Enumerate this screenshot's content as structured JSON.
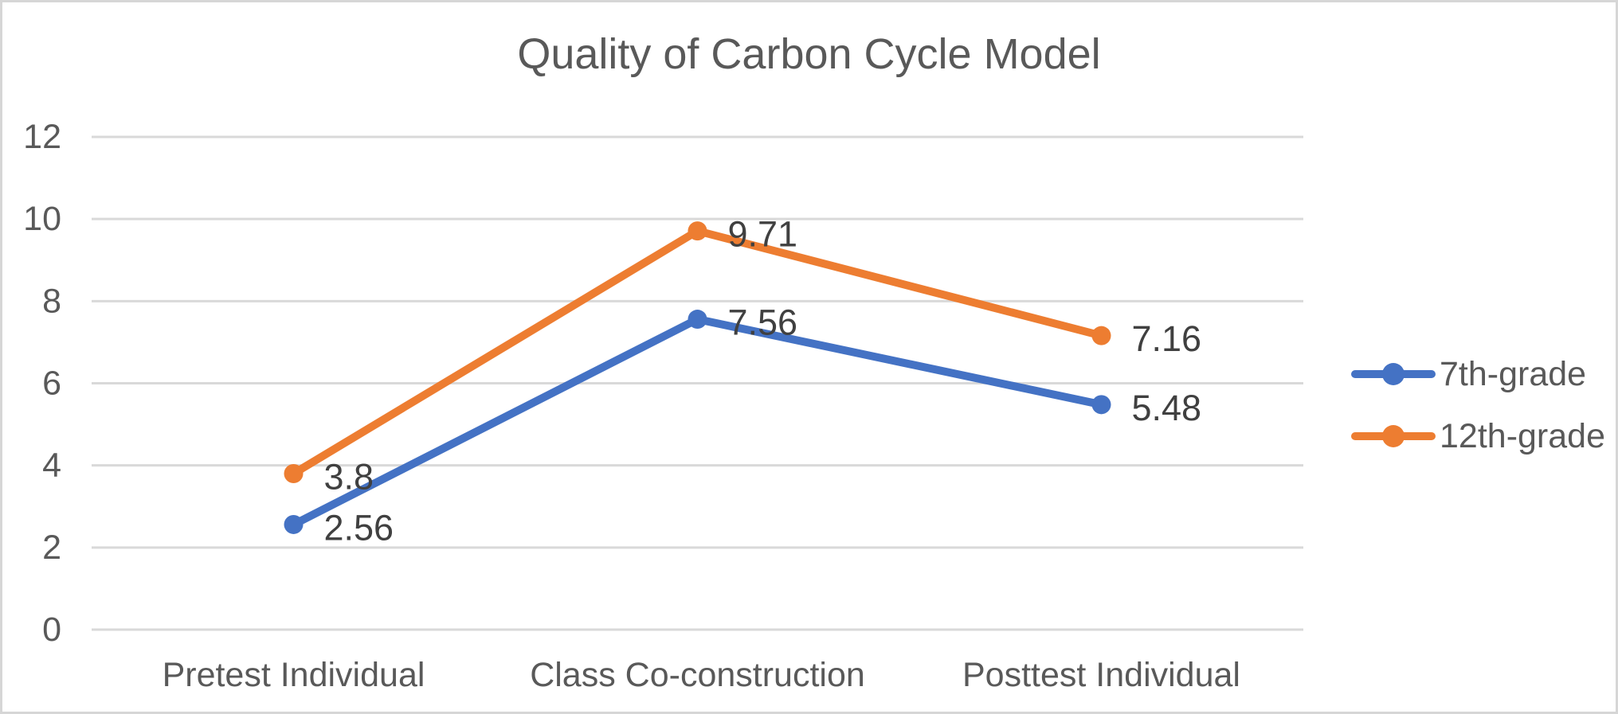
{
  "chart_data": {
    "type": "line",
    "title": "Quality of Carbon Cycle Model",
    "categories": [
      "Pretest Individual",
      "Class Co-construction",
      "Posttest Individual"
    ],
    "series": [
      {
        "name": "7th-grade",
        "color": "#4472C4",
        "values": [
          2.56,
          7.56,
          5.48
        ],
        "data_labels": [
          "2.56",
          "7.56",
          "5.48"
        ]
      },
      {
        "name": "12th-grade",
        "color": "#ED7D31",
        "values": [
          3.8,
          9.71,
          7.16
        ],
        "data_labels": [
          "3.8",
          "9.71",
          "7.16"
        ]
      }
    ],
    "y_axis": {
      "min": 0,
      "max": 12,
      "step": 2,
      "tick_labels": [
        "0",
        "2",
        "4",
        "6",
        "8",
        "10",
        "12"
      ]
    },
    "grid": true,
    "legend_position": "right",
    "marker": "circle",
    "colors": {
      "gridline": "#D9D9D9",
      "axis_text": "#595959",
      "title_text": "#595959",
      "data_label_text": "#404040",
      "frame_border": "#D6D6D6",
      "background": "#FFFFFF"
    }
  }
}
